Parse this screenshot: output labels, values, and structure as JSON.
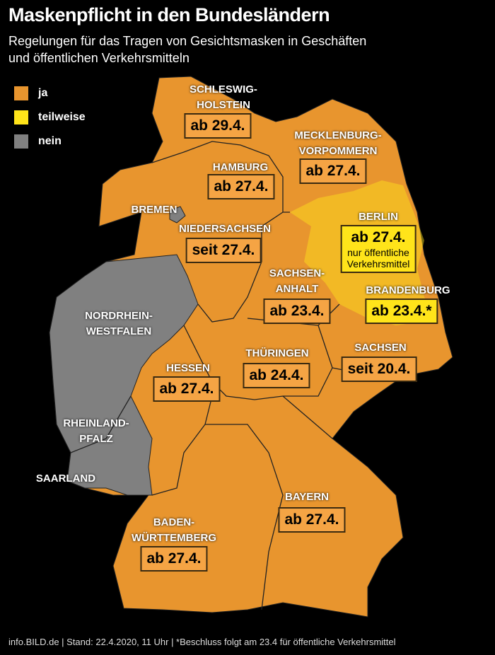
{
  "header": {
    "title": "Maskenpflicht in den Bundesländern",
    "subtitle": [
      "Regelungen für das Tragen von Gesichtsmasken in Geschäften",
      "und öffentlichen Verkehrsmitteln"
    ]
  },
  "legend": [
    {
      "label": "ja",
      "color": "#e8952e"
    },
    {
      "label": "teilweise",
      "color": "#ffe41a"
    },
    {
      "label": "nein",
      "color": "#808080"
    }
  ],
  "states": [
    {
      "name": [
        "SCHLESWIG-",
        "HOLSTEIN"
      ],
      "rule": "ab 29.4."
    },
    {
      "name": [
        "MECKLENBURG-",
        "VORPOMMERN"
      ],
      "rule": "ab 27.4."
    },
    {
      "name": [
        "HAMBURG"
      ],
      "rule": "ab 27.4."
    },
    {
      "name": [
        "BREMEN"
      ]
    },
    {
      "name": [
        "NIEDERSACHSEN"
      ],
      "rule": "seit 27.4."
    },
    {
      "name": [
        "BERLIN"
      ],
      "rule": "ab 27.4.",
      "note": [
        "nur öffentliche",
        "Verkehrsmittel"
      ]
    },
    {
      "name": [
        "SACHSEN-",
        "ANHALT"
      ],
      "rule": "ab 23.4."
    },
    {
      "name": [
        "BRANDENBURG"
      ],
      "rule": "ab 23.4.*"
    },
    {
      "name": [
        "NORDRHEIN-",
        "WESTFALEN"
      ]
    },
    {
      "name": [
        "THÜRINGEN"
      ],
      "rule": "ab 24.4."
    },
    {
      "name": [
        "SACHSEN"
      ],
      "rule": "seit 20.4."
    },
    {
      "name": [
        "HESSEN"
      ],
      "rule": "ab 27.4."
    },
    {
      "name": [
        "RHEINLAND-",
        "PFALZ"
      ]
    },
    {
      "name": [
        "SAARLAND"
      ]
    },
    {
      "name": [
        "BAYERN"
      ],
      "rule": "ab 27.4."
    },
    {
      "name": [
        "BADEN-",
        "WÜRTTEMBERG"
      ],
      "rule": "ab 27.4."
    }
  ],
  "footer": "info.BILD.de | Stand: 22.4.2020, 11 Uhr | *Beschluss folgt am 23.4 für öffentliche Verkehrsmittel"
}
